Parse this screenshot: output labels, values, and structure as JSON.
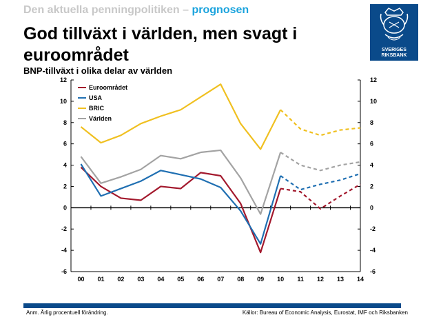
{
  "header": {
    "kicker_grey": "Den aktuella penningpolitiken –",
    "kicker_blue": "prognosen",
    "title": "God tillväxt i världen, men svagt i euroområdet",
    "subtitle": "BNP-tillväxt i olika delar av världen",
    "logo_line1": "SVERIGES",
    "logo_line2": "RIKSBANK"
  },
  "footer": {
    "note": "Anm. Årlig procentuell förändring.",
    "source": "Källor: Bureau of Economic Analysis, Eurostat, IMF och Riksbanken"
  },
  "colors": {
    "euro": "#a3192d",
    "usa": "#1f6fb2",
    "bric": "#f0c020",
    "world": "#a3a3a3",
    "brand": "#0a4a8a",
    "accent": "#1aa3dd"
  },
  "chart_data": {
    "type": "line",
    "x": [
      "00",
      "01",
      "02",
      "03",
      "04",
      "05",
      "06",
      "07",
      "08",
      "09",
      "10",
      "11",
      "12",
      "13",
      "14"
    ],
    "ylim": [
      -6,
      12
    ],
    "yticks": [
      "12",
      "10",
      "8",
      "6",
      "4",
      "2",
      "0",
      "-2",
      "-4",
      "-6"
    ],
    "forecast_from": "10",
    "grid": false,
    "legend_position": "top-left",
    "series": [
      {
        "name": "Euroområdet",
        "color_key": "euro",
        "values": [
          3.8,
          2.0,
          0.9,
          0.7,
          2.0,
          1.8,
          3.3,
          3.0,
          0.4,
          -4.2,
          1.8,
          1.5,
          -0.1,
          1.1,
          2.2
        ]
      },
      {
        "name": "USA",
        "color_key": "usa",
        "values": [
          4.1,
          1.1,
          1.8,
          2.5,
          3.5,
          3.1,
          2.7,
          1.9,
          -0.3,
          -3.4,
          3.0,
          1.7,
          2.2,
          2.6,
          3.2
        ]
      },
      {
        "name": "BRIC",
        "color_key": "bric",
        "values": [
          7.6,
          6.1,
          6.8,
          7.9,
          8.6,
          9.2,
          10.4,
          11.6,
          7.9,
          5.5,
          9.2,
          7.4,
          6.8,
          7.3,
          7.5
        ]
      },
      {
        "name": "Världen",
        "color_key": "world",
        "values": [
          4.8,
          2.3,
          2.9,
          3.6,
          4.9,
          4.6,
          5.2,
          5.4,
          2.8,
          -0.6,
          5.2,
          4.0,
          3.5,
          4.0,
          4.3
        ]
      }
    ]
  }
}
